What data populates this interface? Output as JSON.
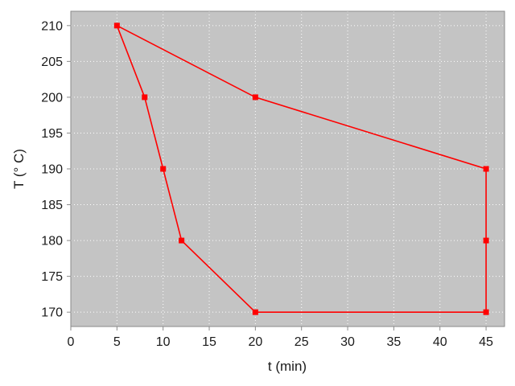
{
  "chart_data": {
    "type": "line",
    "title": "",
    "xlabel": "t (min)",
    "ylabel": "T (° C)",
    "xlim": [
      0,
      47
    ],
    "ylim": [
      168,
      212
    ],
    "xticks": [
      0,
      5,
      10,
      15,
      20,
      25,
      30,
      35,
      40,
      45
    ],
    "yticks": [
      170,
      175,
      180,
      185,
      190,
      195,
      200,
      205,
      210
    ],
    "grid": true,
    "legend_position": "none",
    "plot_background": "#c4c4c4",
    "grid_color": "#ffffff",
    "border_color": "#8a8a8a",
    "tick_text_color": "#1a1a1a",
    "line_color": "#ff0000",
    "marker": "square",
    "series": [
      {
        "name": "temperature-profile",
        "closed": true,
        "points": [
          {
            "x": 5,
            "y": 210
          },
          {
            "x": 20,
            "y": 200
          },
          {
            "x": 45,
            "y": 190
          },
          {
            "x": 45,
            "y": 180
          },
          {
            "x": 45,
            "y": 170
          },
          {
            "x": 20,
            "y": 170
          },
          {
            "x": 12,
            "y": 180
          },
          {
            "x": 10,
            "y": 190
          },
          {
            "x": 8,
            "y": 200
          }
        ]
      }
    ]
  }
}
